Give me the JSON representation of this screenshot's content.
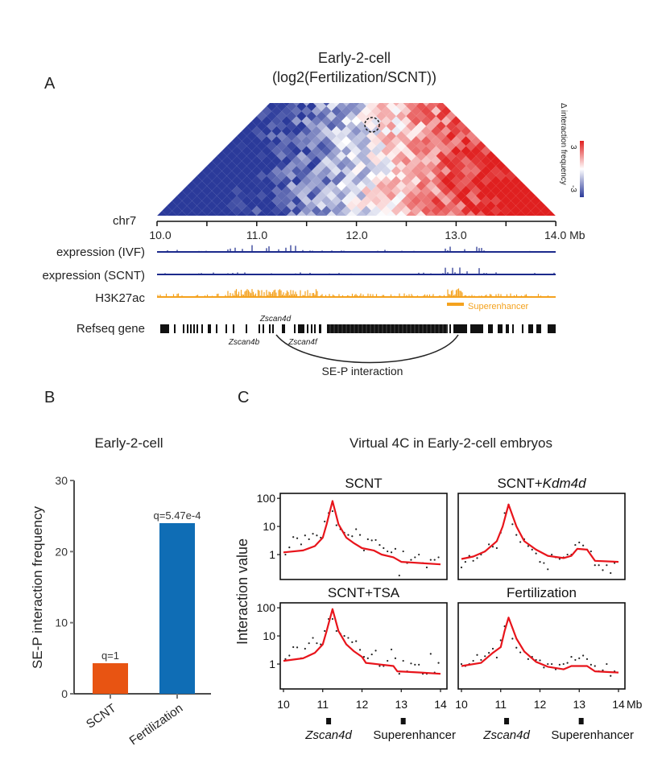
{
  "panel_a": {
    "letter": "A",
    "title": "Early-2-cell",
    "subtitle": "(log2(Fertilization/SCNT))",
    "colorbar_label": "Δ interaction frequency",
    "colorbar_max": "3",
    "colorbar_min": "-3",
    "colorbar_colors": [
      "#2b3a9a",
      "#ffffff",
      "#e02020"
    ],
    "chrom": "chr7",
    "axis_ticks": [
      "10.0",
      "11.0",
      "12.0",
      "13.0",
      "14.0 Mb"
    ],
    "tracks": [
      "expression (IVF)",
      "expression (SCNT)",
      "H3K27ac",
      "Refseq gene"
    ],
    "track_colors": {
      "expression": "#1c2a8c",
      "h3k27ac": "#f4a21e",
      "genes": "#111111"
    },
    "superenhancer_label": "Superenhancer",
    "genes": {
      "zscan4d": "Zscan4d",
      "zscan4b": "Zscan4b",
      "zscan4f": "Zscan4f"
    },
    "interaction_label": "SE-P interaction"
  },
  "panel_b": {
    "letter": "B"
  },
  "panel_c": {
    "letter": "C",
    "title": "Virtual 4C in Early-2-cell embryos",
    "ylabel": "Interaction value",
    "y_ticks": [
      "100",
      "10",
      "1"
    ],
    "x_ticks": [
      "10",
      "11",
      "12",
      "13",
      "14"
    ],
    "x_unit": "Mb",
    "markers": [
      "Zscan4d",
      "Superenhancer"
    ]
  },
  "chart_data": [
    {
      "type": "bar",
      "title": "Early-2-cell",
      "ylabel": "SE-P interaction frequency",
      "categories": [
        "SCNT",
        "Fertilization"
      ],
      "values": [
        4.3,
        24
      ],
      "colors": [
        "#e85412",
        "#0f6db5"
      ],
      "annotations": [
        "q=1",
        "q=5.47e-4"
      ],
      "y_ticks": [
        "0",
        "10",
        "20",
        "30"
      ],
      "ylim": [
        0,
        30
      ]
    },
    {
      "type": "line",
      "title": "Virtual 4C in Early-2-cell embryos",
      "ylabel": "Interaction value",
      "xlabel": "Mb",
      "y_scale": "log",
      "xlim": [
        10,
        14
      ],
      "ylim": [
        0.13,
        150
      ],
      "curve_color": "#e8141b",
      "panels": [
        {
          "name": "SCNT",
          "curve": {
            "x": [
              10,
              10.5,
              10.8,
              11.0,
              11.1,
              11.25,
              11.4,
              11.6,
              11.8,
              12.0,
              12.3,
              12.5,
              12.8,
              13.0,
              13.5,
              14.0
            ],
            "y": [
              1.2,
              1.4,
              2,
              4,
              12,
              80,
              12,
              4,
              2.5,
              1.7,
              1.4,
              1.0,
              0.8,
              0.55,
              0.5,
              0.45
            ]
          },
          "points": {
            "x": [
              10.05,
              10.15,
              10.25,
              10.35,
              10.45,
              10.55,
              10.65,
              10.75,
              10.85,
              10.95,
              11.05,
              11.15,
              11.25,
              11.35,
              11.45,
              11.55,
              11.65,
              11.75,
              11.85,
              11.95,
              12.05,
              12.15,
              12.25,
              12.35,
              12.45,
              12.55,
              12.65,
              12.75,
              12.85,
              12.95,
              13.05,
              13.15,
              13.25,
              13.35,
              13.45,
              13.55,
              13.65,
              13.75,
              13.85,
              13.95
            ],
            "y": [
              1.0,
              1.8,
              4.2,
              3.8,
              2.3,
              4.8,
              3.5,
              5.5,
              4.8,
              4,
              15,
              30,
              35,
              11,
              8,
              6,
              5,
              4.5,
              8,
              5,
              1.4,
              3.5,
              3.2,
              3.3,
              2.2,
              1.7,
              1.3,
              1.2,
              1.6,
              0.18,
              1.3,
              0.5,
              0.65,
              0.8,
              1.0,
              0.5,
              0.35,
              0.65,
              0.65,
              0.8
            ]
          }
        },
        {
          "name": "SCNT+Kdm4d",
          "name_plain": "SCNT+",
          "name_italic": "Kdm4d",
          "curve": {
            "x": [
              10,
              10.3,
              10.6,
              10.9,
              11.05,
              11.2,
              11.4,
              11.6,
              11.9,
              12.2,
              12.6,
              12.8,
              12.95,
              13.2,
              13.4,
              14.0
            ],
            "y": [
              0.7,
              0.85,
              1.3,
              3,
              10,
              60,
              10,
              3,
              1.5,
              0.9,
              0.75,
              0.9,
              1.6,
              1.5,
              0.6,
              0.55
            ]
          },
          "points": {
            "x": [
              10.0,
              10.1,
              10.2,
              10.3,
              10.4,
              10.5,
              10.6,
              10.7,
              10.8,
              10.9,
              11.0,
              11.1,
              11.2,
              11.3,
              11.4,
              11.5,
              11.6,
              11.7,
              11.8,
              11.9,
              12.0,
              12.1,
              12.2,
              12.3,
              12.4,
              12.5,
              12.6,
              12.7,
              12.8,
              12.9,
              13.0,
              13.1,
              13.2,
              13.3,
              13.4,
              13.5,
              13.6,
              13.7,
              13.8,
              13.9
            ],
            "y": [
              0.35,
              0.55,
              0.9,
              0.6,
              0.75,
              1.0,
              1.3,
              2.3,
              1.9,
              1.7,
              6,
              30,
              60,
              12,
              5,
              2.8,
              3.5,
              2,
              1.5,
              1.1,
              0.55,
              0.5,
              0.3,
              1.0,
              0.8,
              0.7,
              0.8,
              1.0,
              1.0,
              2.2,
              2.7,
              2.1,
              1.5,
              1.3,
              0.42,
              0.42,
              0.28,
              0.42,
              0.22,
              0.5
            ]
          }
        },
        {
          "name": "SCNT+TSA",
          "curve": {
            "x": [
              10,
              10.5,
              10.8,
              11.0,
              11.1,
              11.25,
              11.4,
              11.6,
              11.8,
              12.0,
              12.1,
              12.5,
              12.8,
              12.9,
              13.5,
              14.0
            ],
            "y": [
              1.3,
              1.6,
              2.5,
              5,
              15,
              90,
              15,
              5,
              2.8,
              1.8,
              1.1,
              0.95,
              0.85,
              0.55,
              0.5,
              0.45
            ]
          },
          "points": {
            "x": [
              10.05,
              10.15,
              10.25,
              10.35,
              10.45,
              10.55,
              10.65,
              10.75,
              10.85,
              10.95,
              11.05,
              11.15,
              11.25,
              11.35,
              11.45,
              11.55,
              11.65,
              11.75,
              11.85,
              11.95,
              12.05,
              12.15,
              12.25,
              12.35,
              12.45,
              12.55,
              12.65,
              12.75,
              12.85,
              12.95,
              13.05,
              13.15,
              13.25,
              13.35,
              13.45,
              13.55,
              13.65,
              13.75,
              13.85,
              13.95
            ],
            "y": [
              1.5,
              2,
              4,
              3.9,
              1.6,
              3.5,
              5.5,
              8.5,
              5.5,
              5,
              15,
              40,
              40,
              15,
              12,
              10,
              8.5,
              6,
              6.5,
              3.2,
              1.8,
              1.6,
              2.2,
              3,
              0.85,
              0.85,
              1.3,
              3.3,
              1.6,
              0.45,
              1.3,
              0.55,
              1.05,
              0.95,
              0.95,
              0.45,
              0.45,
              2.3,
              0.5,
              1.1
            ]
          }
        },
        {
          "name": "Fertilization",
          "curve": {
            "x": [
              10,
              10.5,
              10.8,
              11.0,
              11.1,
              11.2,
              11.4,
              11.6,
              11.9,
              12.2,
              12.6,
              12.8,
              13.2,
              13.4,
              14.0
            ],
            "y": [
              0.85,
              1.1,
              2.5,
              4,
              15,
              45,
              8,
              2.8,
              1.2,
              0.8,
              0.65,
              0.85,
              0.85,
              0.55,
              0.5
            ]
          },
          "points": {
            "x": [
              10.0,
              10.1,
              10.2,
              10.3,
              10.4,
              10.5,
              10.6,
              10.7,
              10.8,
              10.9,
              11.0,
              11.1,
              11.2,
              11.3,
              11.4,
              11.5,
              11.6,
              11.7,
              11.8,
              11.9,
              12.0,
              12.1,
              12.2,
              12.3,
              12.4,
              12.5,
              12.6,
              12.7,
              12.8,
              12.9,
              13.0,
              13.1,
              13.2,
              13.3,
              13.4,
              13.5,
              13.6,
              13.7,
              13.8,
              13.9
            ],
            "y": [
              1.0,
              0.85,
              1.0,
              1.3,
              2.1,
              1.4,
              1.9,
              2.5,
              3.5,
              1.7,
              7,
              22,
              38,
              8,
              3.8,
              2.6,
              2.8,
              1.5,
              1.8,
              1.4,
              1.35,
              0.75,
              1.0,
              1.0,
              0.65,
              0.95,
              1.0,
              1.1,
              1.8,
              1.4,
              1.6,
              2.0,
              1.5,
              0.95,
              0.85,
              0.55,
              0.6,
              1.0,
              0.38,
              0.55
            ]
          }
        }
      ]
    }
  ]
}
